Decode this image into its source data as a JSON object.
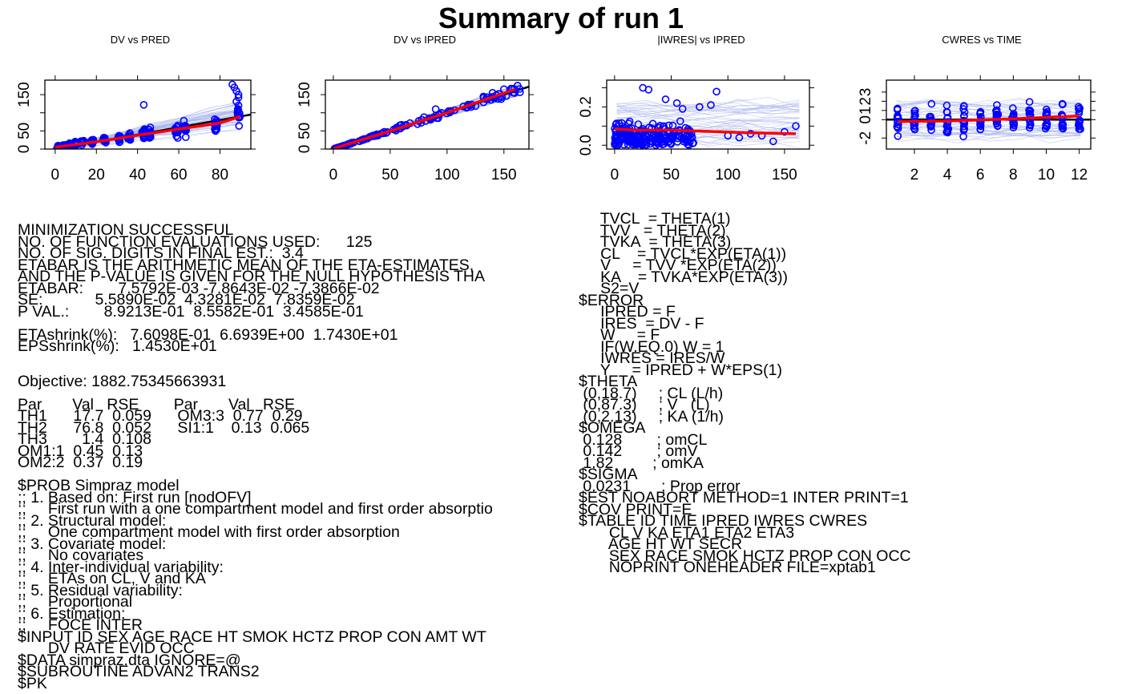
{
  "title": "Summary of run 1",
  "colors": {
    "points": "#0000ff",
    "smooth": "#ff0000",
    "reference": "#000000",
    "individual": "#a8b4ee"
  },
  "chart_data": [
    {
      "id": "dv_pred",
      "type": "scatter",
      "title": "DV vs PRED",
      "xlabel": "",
      "ylabel": "",
      "xlim": [
        -5,
        95
      ],
      "ylim": [
        0,
        190
      ],
      "xticks": [
        0,
        20,
        40,
        60,
        80
      ],
      "yticks": [
        0,
        50,
        100,
        150
      ],
      "yticklabels": [
        "0",
        "50",
        "",
        "150"
      ],
      "reference": "identity line",
      "x_groups": [
        1.5,
        4.3,
        7.2,
        10.1,
        13,
        18,
        24,
        31,
        36,
        43,
        46,
        59,
        63,
        78,
        89
      ],
      "y_means": [
        6,
        9,
        12,
        15,
        18,
        22,
        25,
        29,
        33,
        40,
        44,
        48,
        55,
        63,
        90
      ],
      "y_spreads": [
        5,
        6,
        7,
        8,
        9,
        10,
        11,
        12,
        14,
        17,
        18,
        20,
        22,
        26,
        35
      ],
      "extra_points": [
        [
          43,
          122
        ],
        [
          86,
          178
        ],
        [
          87,
          170
        ],
        [
          88,
          160
        ],
        [
          89,
          150
        ],
        [
          89,
          142
        ],
        [
          88,
          131
        ],
        [
          89,
          120
        ]
      ],
      "smooth": [
        [
          0,
          5
        ],
        [
          20,
          20
        ],
        [
          40,
          38
        ],
        [
          60,
          55
        ],
        [
          80,
          72
        ],
        [
          90,
          90
        ]
      ]
    },
    {
      "id": "dv_ipred",
      "type": "scatter",
      "title": "DV vs IPRED",
      "xlabel": "",
      "ylabel": "",
      "xlim": [
        -7,
        172
      ],
      "ylim": [
        0,
        190
      ],
      "xticks": [
        0,
        50,
        100,
        150
      ],
      "yticks": [
        0,
        50,
        100,
        150
      ],
      "yticklabels": [
        "0",
        "50",
        "",
        "150"
      ],
      "reference": "identity line",
      "points_line": {
        "x_from": 1,
        "x_to": 165,
        "slope": 1.0,
        "scatter_frac": 0.08
      },
      "extra_points": [
        [
          90,
          110
        ],
        [
          95,
          100
        ],
        [
          100,
          98
        ],
        [
          120,
          120
        ],
        [
          132,
          145
        ],
        [
          140,
          155
        ],
        [
          150,
          165
        ],
        [
          162,
          175
        ]
      ],
      "smooth": [
        [
          0,
          1
        ],
        [
          50,
          50
        ],
        [
          100,
          100
        ],
        [
          160,
          165
        ]
      ]
    },
    {
      "id": "iwres_ipred",
      "type": "scatter",
      "title": "|IWRES| vs IPRED",
      "xlabel": "",
      "ylabel": "",
      "xlim": [
        -7,
        172
      ],
      "ylim": [
        -0.02,
        0.34
      ],
      "xticks": [
        0,
        50,
        100,
        150
      ],
      "yticks": [
        0,
        0.1,
        0.2,
        0.3
      ],
      "yticklabels": [
        "0.0",
        "",
        "0.2",
        ""
      ],
      "reference": "none",
      "dense_region": {
        "x_from": 0,
        "x_to": 70,
        "y_max": 0.28
      },
      "extra_points": [
        [
          25,
          0.3
        ],
        [
          30,
          0.29
        ],
        [
          45,
          0.24
        ],
        [
          55,
          0.22
        ],
        [
          60,
          0.19
        ],
        [
          75,
          0.2
        ],
        [
          85,
          0.21
        ],
        [
          90,
          0.28
        ],
        [
          100,
          0.05
        ],
        [
          110,
          0.04
        ],
        [
          120,
          0.06
        ],
        [
          130,
          0.05
        ],
        [
          140,
          0.02
        ],
        [
          150,
          0.07
        ],
        [
          160,
          0.1
        ]
      ],
      "smooth": [
        [
          0,
          0.085
        ],
        [
          20,
          0.078
        ],
        [
          40,
          0.08
        ],
        [
          80,
          0.073
        ],
        [
          120,
          0.065
        ],
        [
          160,
          0.06
        ]
      ]
    },
    {
      "id": "cwres_time",
      "type": "scatter",
      "title": "CWRES vs TIME",
      "xlabel": "",
      "ylabel": "",
      "xlim": [
        0.3,
        12.7
      ],
      "ylim": [
        -3.2,
        4.3
      ],
      "xticks": [
        2,
        4,
        6,
        8,
        10,
        12
      ],
      "yticks": [
        -2,
        0,
        1,
        2,
        3
      ],
      "yticklabels": [
        "-2",
        "0",
        "1",
        "2",
        "3"
      ],
      "reference": "horizontal line y=0",
      "x_groups": [
        1,
        2,
        3,
        4,
        5,
        6,
        7,
        8,
        9,
        10,
        11,
        12
      ],
      "smooth": [
        [
          1,
          -0.2
        ],
        [
          4,
          -0.15
        ],
        [
          8,
          0.1
        ],
        [
          12,
          0.4
        ]
      ]
    }
  ],
  "left_text": [
    "MINIMIZATION SUCCESSFUL",
    "NO. OF FUNCTION EVALUATIONS USED:      125",
    "NO. OF SIG. DIGITS IN FINAL EST.:  3.4",
    "ETABAR IS THE ARITHMETIC MEAN OF THE ETA-ESTIMATES,",
    "AND THE P-VALUE IS GIVEN FOR THE NULL HYPOTHESIS THA",
    "ETABAR:        7.5792E-03 -7.8643E-02 -7.3866E-02",
    "SE:            5.5890E-02  4.3281E-02  7.8359E-02",
    "P VAL.:        8.9213E-01  8.5582E-01  3.4585E-01",
    "",
    "ETAshrink(%):   7.6098E-01  6.6939E+00  1.7430E+01",
    "EPSshrink(%):   1.4530E+01",
    "",
    "",
    "Objective: 1882.75345663931",
    "",
    "Par       Val   RSE        Par       Val   RSE",
    "TH1      17.7  0.059      OM3:3  0.77  0.29",
    "TH2      76.8  0.052      SI1:1    0.13  0.065",
    "TH3        1.4  0.108",
    "OM1:1  0.45  0.13",
    "OM2:2  0.37  0.19",
    "",
    "$PROB Simpraz model",
    ";; 1. Based on: First run [nodOFV]",
    ";;     First run with a one compartment model and first order absorptio",
    ";; 2. Structural model:",
    ";;     One compartment model with first order absorption",
    ";; 3. Covariate model:",
    ";;     No covariates",
    ";; 4. Inter-individual variability:",
    ";;     ETAs on CL, V and KA",
    ";; 5. Residual variability:",
    ";;     Proportional",
    ";; 6. Estimation:",
    ";;     FOCE INTER",
    "$INPUT ID SEX AGE RACE HT SMOK HCTZ PROP CON AMT WT",
    "       DV RATE EVID OCC",
    "$DATA simpraz.dta IGNORE=@",
    "$SUBROUTINE ADVAN2 TRANS2",
    "$PK"
  ],
  "right_text": [
    "     TVCL  = THETA(1)",
    "     TVV   = THETA(2)",
    "     TVKA  = THETA(3)",
    "     CL    = TVCL*EXP(ETA(1))",
    "     V     = TVV *EXP(ETA(2))",
    "     KA    = TVKA*EXP(ETA(3))",
    "     S2=V",
    "$ERROR",
    "     IPRED = F",
    "     IRES  = DV - F",
    "     W     = F",
    "     IF(W.EQ.0) W = 1",
    "     IWRES = IRES/W",
    "     Y     = IPRED + W*EPS(1)",
    "$THETA",
    " (0,18.7)     ; CL (L/h)",
    " (0,87.3)     ; V   (L)",
    " (0,2.13)     ; KA (1/h)",
    "$OMEGA",
    " 0.128        ; omCL",
    " 0.142        ; omV",
    " 1.82         ; omKA",
    "$SIGMA",
    " 0.0231       ; Prop error",
    "$EST NOABORT METHOD=1 INTER PRINT=1",
    "$COV PRINT=E",
    "$TABLE ID TIME IPRED IWRES CWRES",
    "       CL V KA ETA1 ETA2 ETA3",
    "       AGE HT WT SECR",
    "       SEX RACE SMOK HCTZ PROP CON OCC",
    "       NOPRINT ONEHEADER FILE=xptab1"
  ]
}
